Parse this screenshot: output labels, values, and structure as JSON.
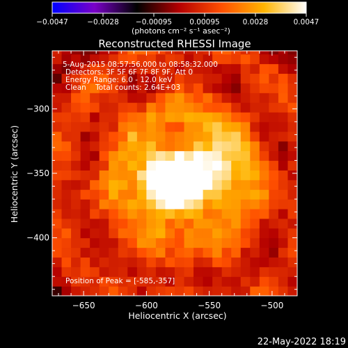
{
  "chart_data": {
    "type": "heatmap",
    "title": "Reconstructed RHESSI Image",
    "xlabel": "Heliocentric X (arcsec)",
    "ylabel": "Heliocentric Y (arcsec)",
    "xlim": [
      -675,
      -480
    ],
    "ylim": [
      -445,
      -255
    ],
    "x_ticks": [
      -650,
      -600,
      -550,
      -500
    ],
    "y_ticks": [
      -300,
      -350,
      -400
    ],
    "x_tick_labels": [
      "−650",
      "−600",
      "−550",
      "−500"
    ],
    "y_tick_labels": [
      "−300",
      "−350",
      "−400"
    ],
    "colorbar": {
      "range": [
        -0.0047,
        0.0047
      ],
      "ticks": [
        "−0.0047",
        "−0.0028",
        "−0.00095",
        "0.00095",
        "0.0028",
        "0.0047"
      ],
      "unit_label": "(photons cm⁻² s⁻¹ asec⁻²)",
      "colors": [
        "#0000ff",
        "#7a00c8",
        "#000000",
        "#b40000",
        "#ff5000",
        "#ffb400",
        "#ffffff"
      ]
    },
    "sources": [
      {
        "x": -585,
        "y": -357,
        "peak": 0.0047
      },
      {
        "x": -555,
        "y": -350,
        "peak": 0.0036
      }
    ],
    "annotations": {
      "time_range": "5-Aug-2015 08:57:56.000 to 08:58:32.000",
      "detectors": "Detectors: 3F 5F 6F 7F 8F 9F, Att 0",
      "energy": "Energy Range: 6.0 - 12.0 keV",
      "clean": "Clean    Total counts: 2.64E+03",
      "peak_position": "Position of Peak = [-585,-357]"
    },
    "footer_date": "22-May-2022 18:19"
  }
}
